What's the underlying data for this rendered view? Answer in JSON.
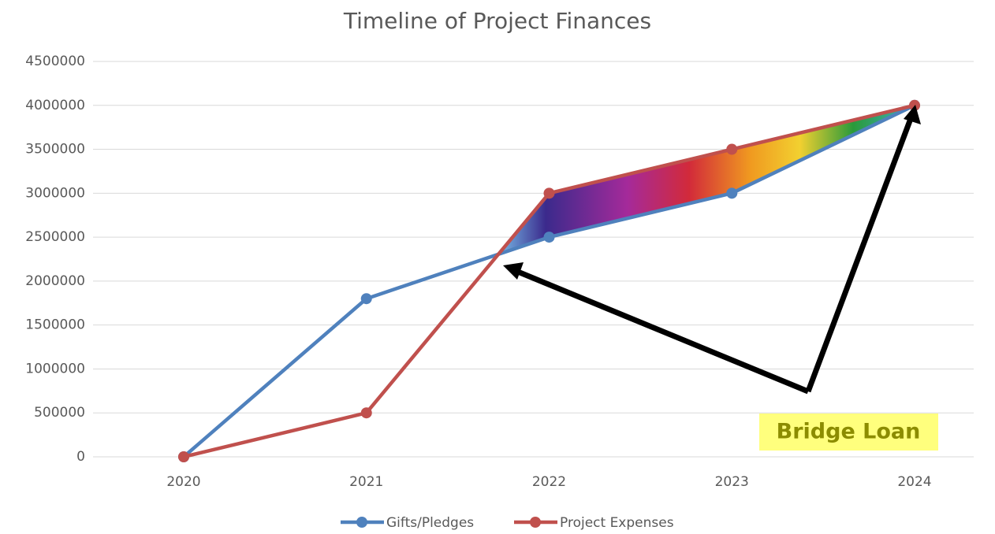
{
  "chart_data": {
    "type": "line",
    "title": "Timeline of Project Finances",
    "categories": [
      "2020",
      "2021",
      "2022",
      "2023",
      "2024"
    ],
    "series": [
      {
        "name": "Gifts/Pledges",
        "color": "#4f81bd",
        "values": [
          0,
          1800000,
          2500000,
          3000000,
          4000000
        ]
      },
      {
        "name": "Project Expenses",
        "color": "#c0504d",
        "values": [
          0,
          500000,
          3000000,
          3500000,
          4000000
        ]
      }
    ],
    "ylim": [
      0,
      4500000
    ],
    "yticks": [
      0,
      500000,
      1000000,
      1500000,
      2000000,
      2500000,
      3000000,
      3500000,
      4000000,
      4500000
    ],
    "grid": true,
    "legend": "bottom",
    "annotation": "Bridge Loan"
  }
}
